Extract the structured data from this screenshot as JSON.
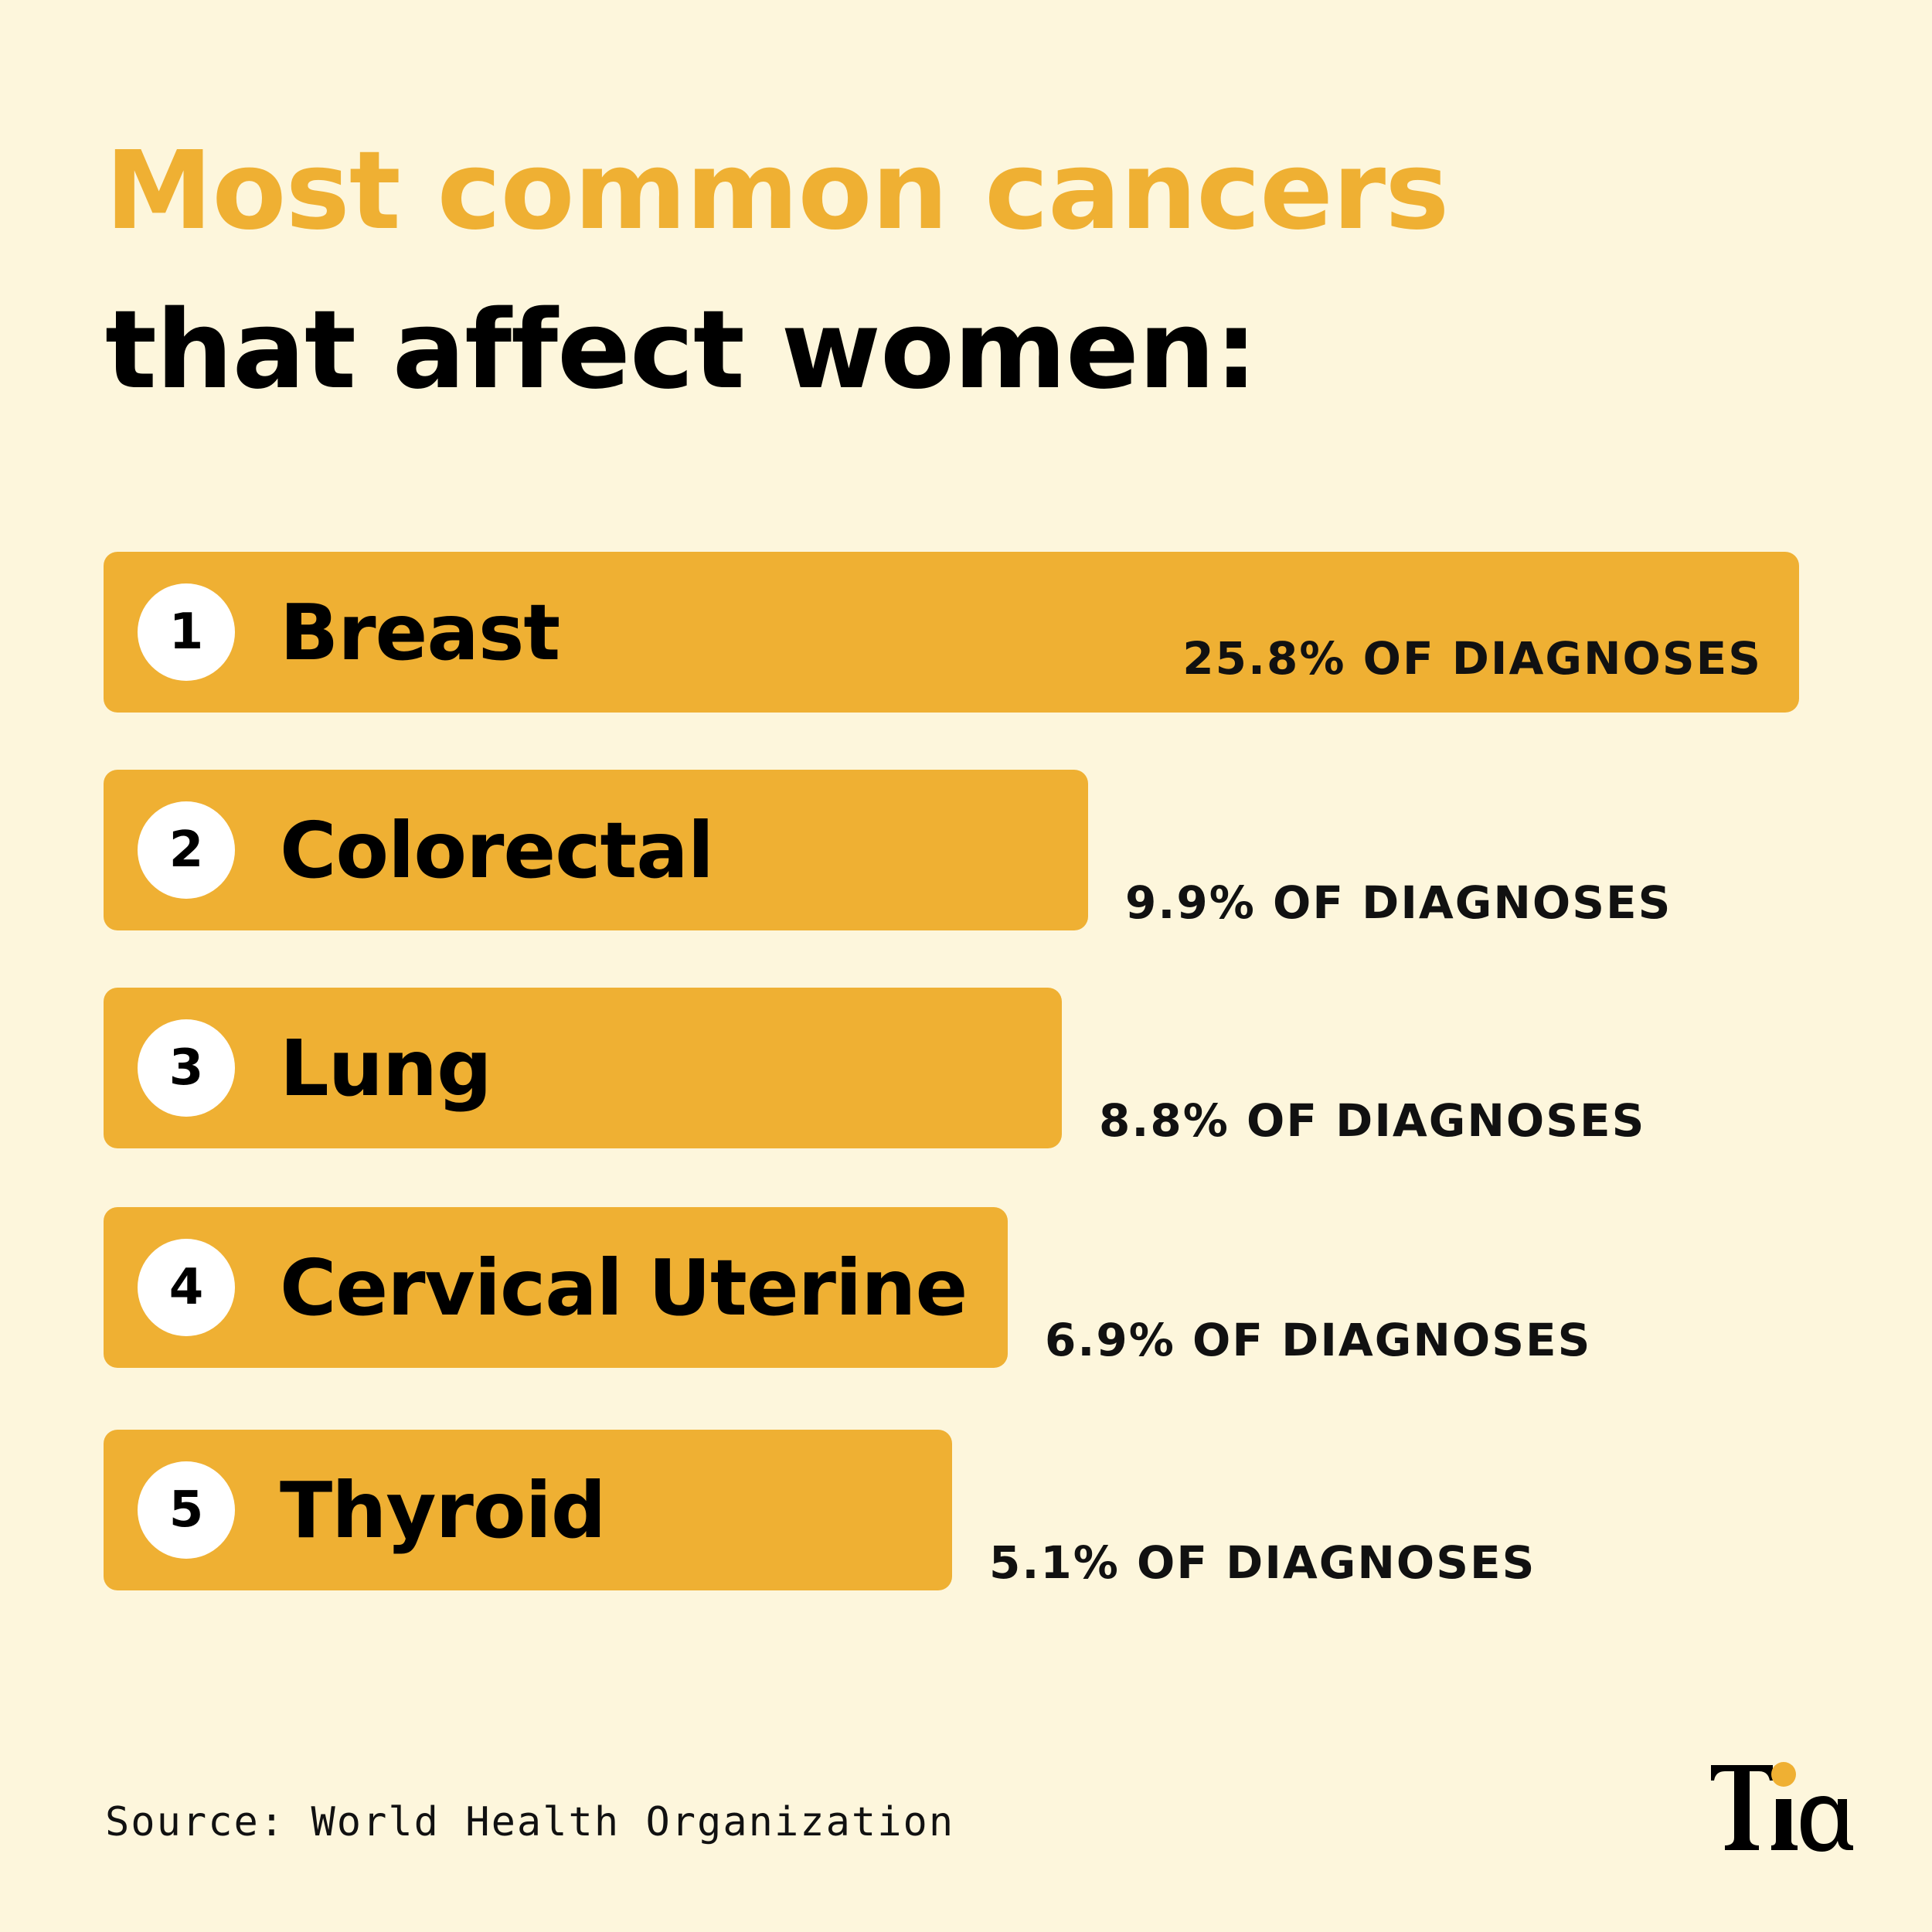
{
  "title": {
    "line1": "Most common cancers",
    "line2": "that affect women:"
  },
  "chart_data": {
    "type": "bar",
    "orientation": "horizontal",
    "categories": [
      "Breast",
      "Colorectal",
      "Lung",
      "Cervical Uterine",
      "Thyroid"
    ],
    "ranks": [
      "1",
      "2",
      "3",
      "4",
      "5"
    ],
    "values": [
      25.8,
      9.9,
      8.8,
      6.9,
      5.1
    ],
    "value_labels": [
      "25.8% OF DIAGNOSES",
      "9.9% OF DIAGNOSES",
      "8.8% OF DIAGNOSES",
      "6.9% OF DIAGNOSES",
      "5.1% OF DIAGNOSES"
    ],
    "unit": "%",
    "bar_color": "#efb033",
    "grid": false,
    "legend": "none"
  },
  "source": "Source: World Health Organization",
  "logo": {
    "text": "Tia",
    "dot_color": "#efb033"
  },
  "colors": {
    "background": "#fdf6dc",
    "accent": "#efb033",
    "text": "#000000"
  }
}
